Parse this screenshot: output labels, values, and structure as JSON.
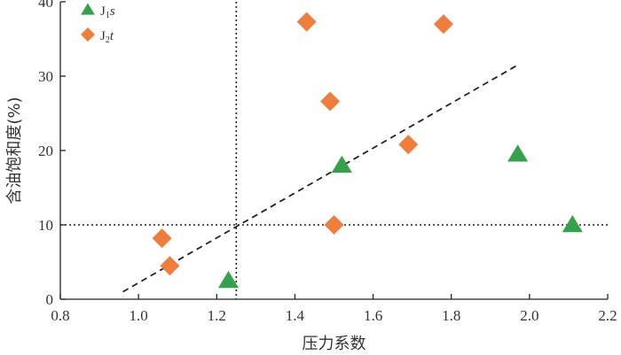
{
  "chart_data": {
    "type": "scatter",
    "xlabel": "压力系数",
    "ylabel": "含油饱和度(%)",
    "xlim": [
      0.8,
      2.2
    ],
    "ylim": [
      0,
      40
    ],
    "xticks": [
      "0.8",
      "1.0",
      "1.2",
      "1.4",
      "1.6",
      "1.8",
      "2.0",
      "2.2"
    ],
    "yticks": [
      "0",
      "10",
      "20",
      "30",
      "40"
    ],
    "grid": false,
    "legend_position": "top-left",
    "series": [
      {
        "name": "J1s",
        "name_main": "J",
        "name_sub": "1",
        "name_italic": "s",
        "marker": "triangle",
        "color": "#34a24a",
        "points": [
          {
            "x": 1.23,
            "y": 2.5
          },
          {
            "x": 1.52,
            "y": 18.0
          },
          {
            "x": 1.97,
            "y": 19.5
          },
          {
            "x": 2.11,
            "y": 10.0
          }
        ]
      },
      {
        "name": "J2t",
        "name_main": "J",
        "name_sub": "2",
        "name_italic": "t",
        "marker": "diamond",
        "color": "#ef7d3c",
        "points": [
          {
            "x": 1.06,
            "y": 8.2
          },
          {
            "x": 1.08,
            "y": 4.5
          },
          {
            "x": 1.43,
            "y": 37.3
          },
          {
            "x": 1.49,
            "y": 26.6
          },
          {
            "x": 1.5,
            "y": 10.0
          },
          {
            "x": 1.69,
            "y": 20.8
          },
          {
            "x": 1.78,
            "y": 37.0
          }
        ]
      }
    ],
    "reference_lines": [
      {
        "orientation": "vertical",
        "x": 1.25,
        "style": "dotted"
      },
      {
        "orientation": "horizontal",
        "y": 10,
        "style": "dotted"
      }
    ],
    "trend_line": {
      "x": [
        0.96,
        1.97
      ],
      "y": [
        1.0,
        31.5
      ],
      "style": "dashed"
    }
  }
}
